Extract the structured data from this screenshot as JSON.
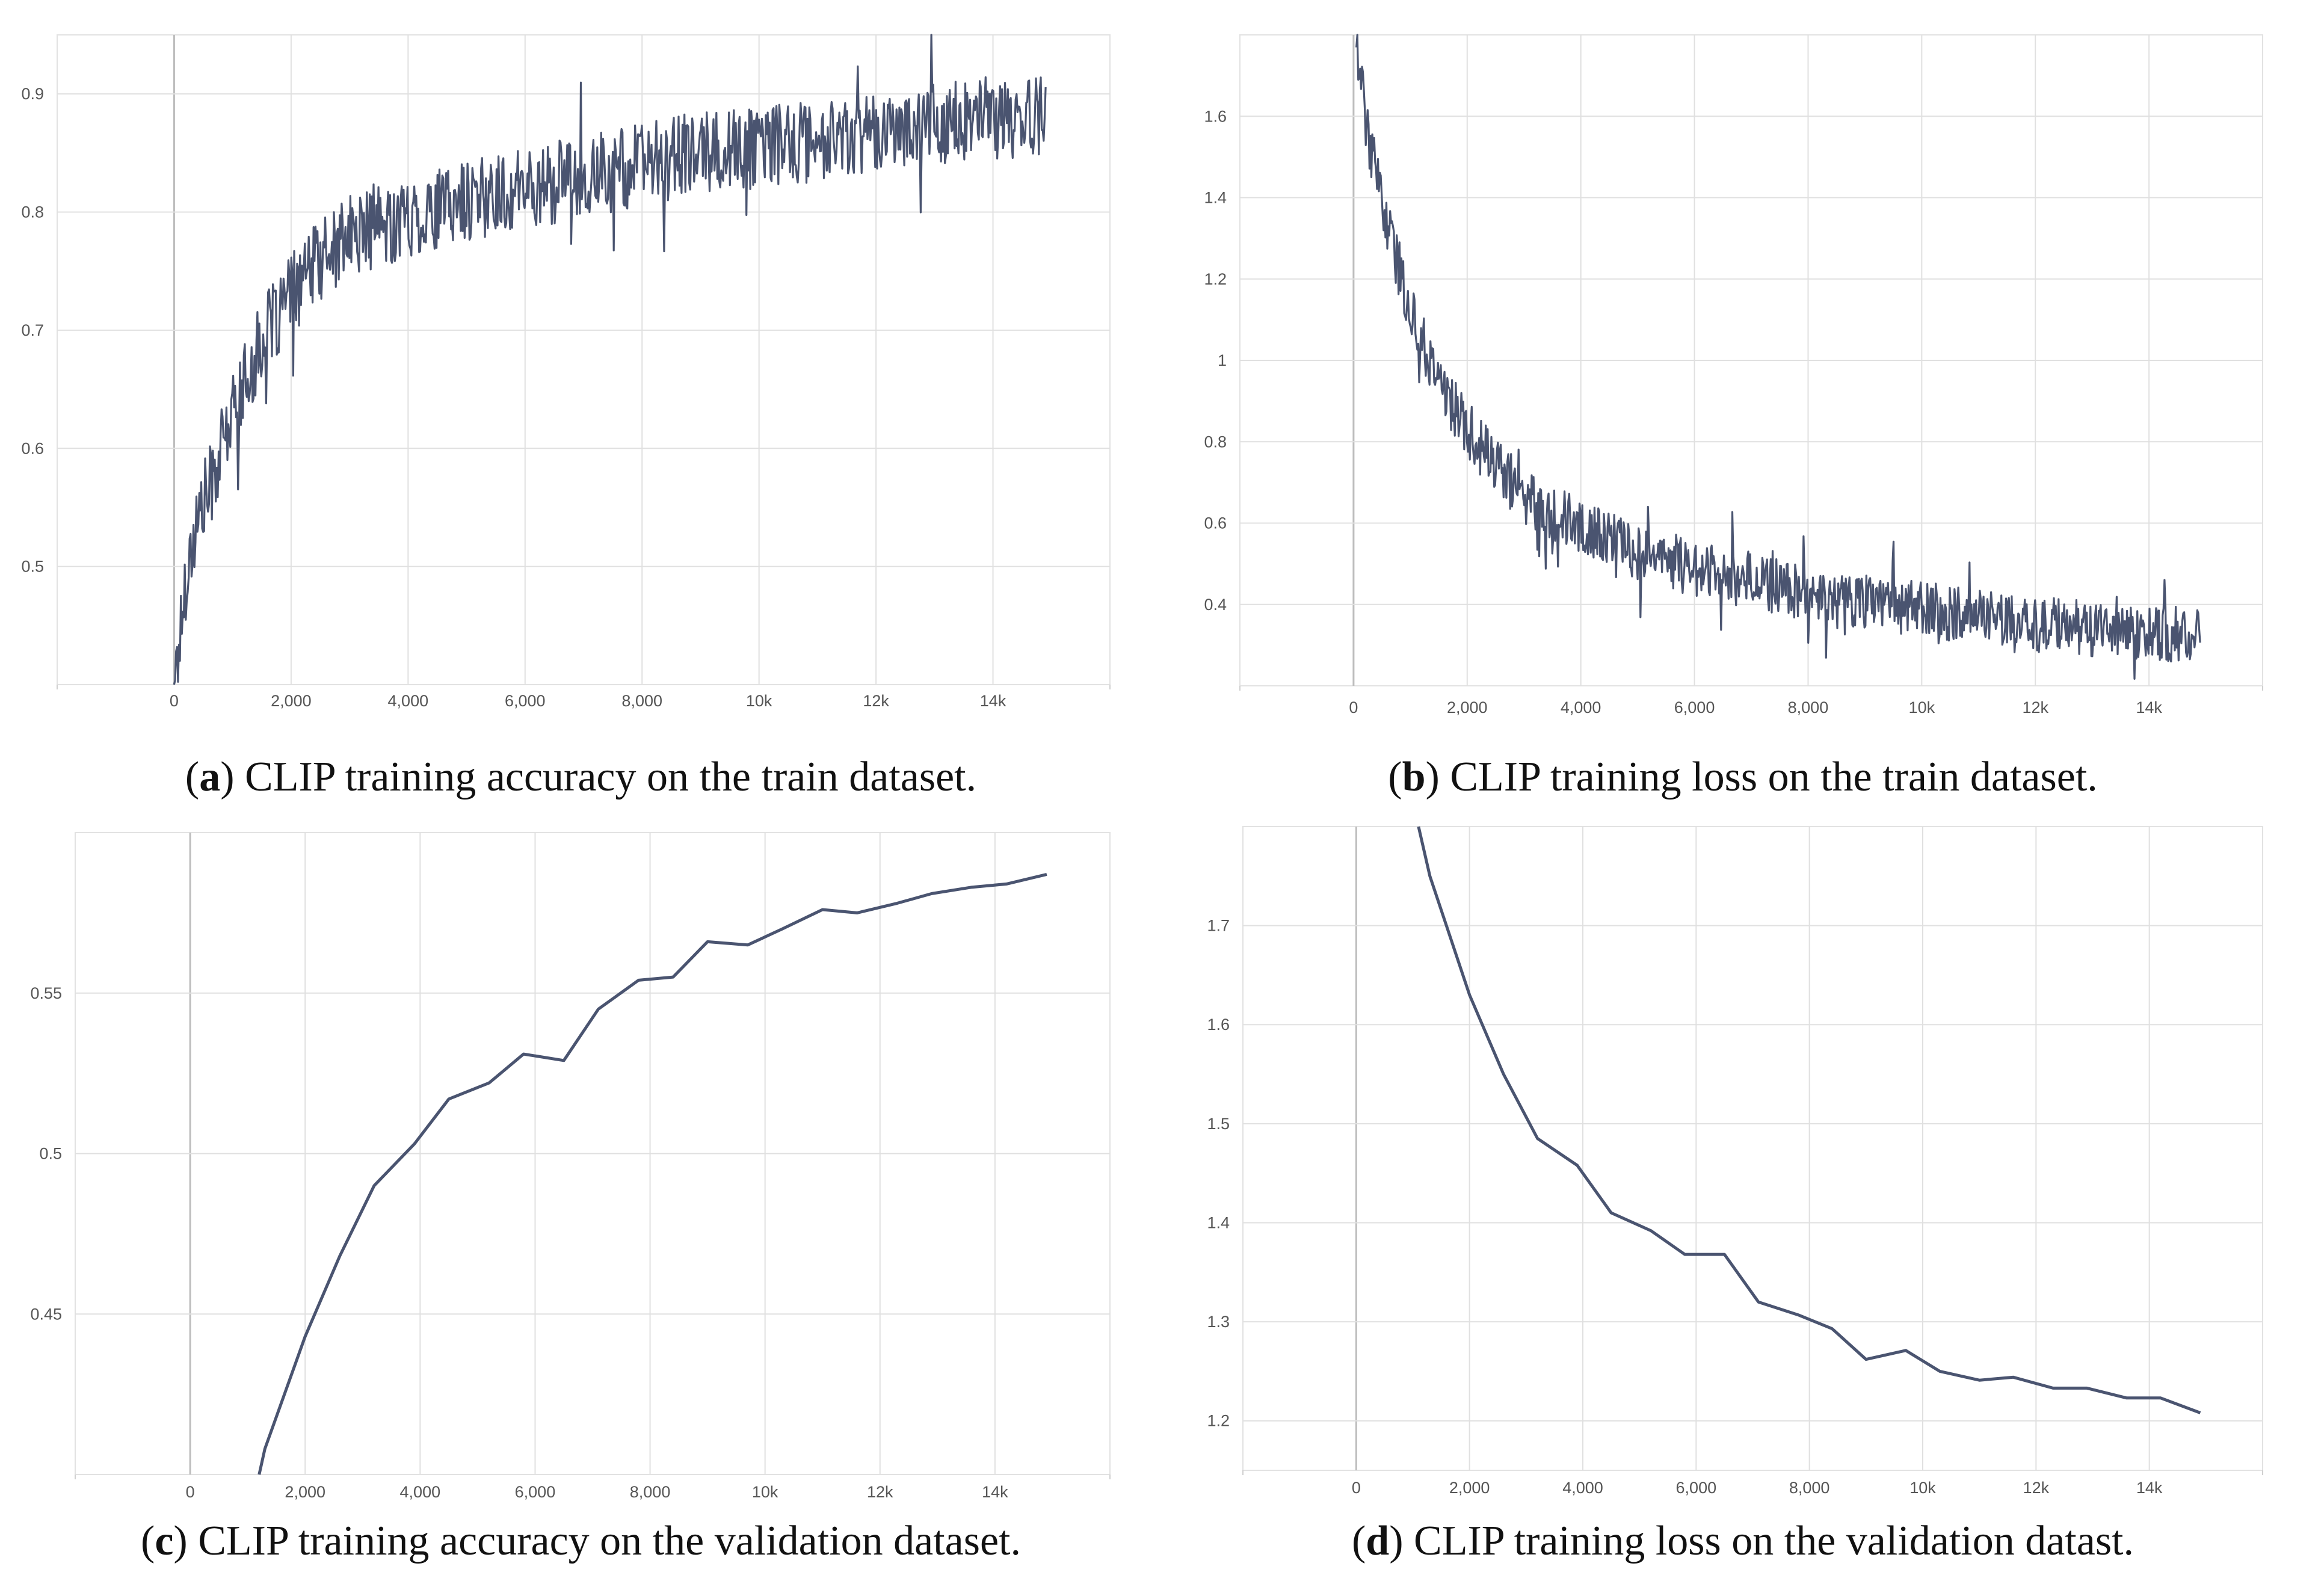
{
  "figure": {
    "line_color": "#4a5470",
    "panels": [
      {
        "id": "a",
        "caption_letter": "a",
        "caption_open": "(",
        "caption_close": ")",
        "caption_text": " CLIP training accuracy on the train dataset."
      },
      {
        "id": "b",
        "caption_letter": "b",
        "caption_open": "(",
        "caption_close": ")",
        "caption_text": " CLIP training loss on the train dataset."
      },
      {
        "id": "c",
        "caption_letter": "c",
        "caption_open": "(",
        "caption_close": ")",
        "caption_text": " CLIP training accuracy on the validation dataset."
      },
      {
        "id": "d",
        "caption_letter": "d",
        "caption_open": "(",
        "caption_close": ")",
        "caption_text": " CLIP training loss on the validation datast."
      }
    ]
  },
  "chart_data": [
    {
      "panel": "a",
      "type": "line",
      "title": "",
      "xlabel": "",
      "ylabel": "",
      "xlim": [
        -2000,
        16000
      ],
      "ylim": [
        0.4,
        0.95
      ],
      "grid": true,
      "x_ticks": [
        0,
        2000,
        4000,
        6000,
        8000,
        10000,
        12000,
        14000
      ],
      "x_tick_labels": [
        "0",
        "2,000",
        "4,000",
        "6,000",
        "8,000",
        "10k",
        "12k",
        "14k"
      ],
      "y_ticks": [
        0.5,
        0.6,
        0.7,
        0.8,
        0.9
      ],
      "y_tick_labels": [
        "0.5",
        "0.6",
        "0.7",
        "0.8",
        "0.9"
      ],
      "noisy": true,
      "noise_amplitude": 0.035,
      "series": [
        {
          "name": "train accuracy",
          "x": [
            0,
            100,
            200,
            400,
            700,
            1000,
            1500,
            2000,
            2500,
            3000,
            4000,
            5000,
            6000,
            7000,
            8000,
            9000,
            10000,
            11000,
            12000,
            13000,
            14000,
            14900
          ],
          "y": [
            0.4,
            0.44,
            0.49,
            0.54,
            0.58,
            0.63,
            0.69,
            0.73,
            0.76,
            0.78,
            0.795,
            0.81,
            0.82,
            0.83,
            0.84,
            0.85,
            0.855,
            0.86,
            0.87,
            0.875,
            0.88,
            0.88
          ]
        }
      ]
    },
    {
      "panel": "b",
      "type": "line",
      "title": "",
      "xlabel": "",
      "ylabel": "",
      "xlim": [
        -2000,
        16000
      ],
      "ylim": [
        0.2,
        1.8
      ],
      "grid": true,
      "x_ticks": [
        0,
        2000,
        4000,
        6000,
        8000,
        10000,
        12000,
        14000
      ],
      "x_tick_labels": [
        "0",
        "2,000",
        "4,000",
        "6,000",
        "8,000",
        "10k",
        "12k",
        "14k"
      ],
      "y_ticks": [
        0.4,
        0.6,
        0.8,
        1.0,
        1.2,
        1.4,
        1.6
      ],
      "y_tick_labels": [
        "0.4",
        "0.6",
        "0.8",
        "1",
        "1.2",
        "1.4",
        "1.6"
      ],
      "noisy": true,
      "noise_amplitude": 0.07,
      "series": [
        {
          "name": "train loss",
          "x": [
            50,
            200,
            400,
            700,
            1000,
            1500,
            2000,
            2500,
            3000,
            4000,
            5000,
            6000,
            7000,
            8000,
            9000,
            10000,
            11000,
            12000,
            13000,
            14000,
            14900
          ],
          "y": [
            1.8,
            1.6,
            1.45,
            1.28,
            1.12,
            0.95,
            0.83,
            0.74,
            0.67,
            0.59,
            0.53,
            0.49,
            0.46,
            0.43,
            0.41,
            0.39,
            0.37,
            0.35,
            0.34,
            0.33,
            0.32
          ]
        }
      ]
    },
    {
      "panel": "c",
      "type": "line",
      "title": "",
      "xlabel": "",
      "ylabel": "",
      "xlim": [
        -2000,
        16000
      ],
      "ylim": [
        0.4,
        0.6
      ],
      "grid": true,
      "x_ticks": [
        0,
        2000,
        4000,
        6000,
        8000,
        10000,
        12000,
        14000
      ],
      "x_tick_labels": [
        "0",
        "2,000",
        "4,000",
        "6,000",
        "8,000",
        "10k",
        "12k",
        "14k"
      ],
      "y_ticks": [
        0.45,
        0.5,
        0.55
      ],
      "y_tick_labels": [
        "0.45",
        "0.5",
        "0.55"
      ],
      "noisy": false,
      "series": [
        {
          "name": "validation accuracy",
          "x": [
            1200,
            1300,
            2000,
            2600,
            3200,
            3900,
            4500,
            5200,
            5800,
            6500,
            7100,
            7800,
            8400,
            9000,
            9700,
            10300,
            11000,
            11600,
            12300,
            12900,
            13600,
            14200,
            14900
          ],
          "y": [
            0.4,
            0.408,
            0.443,
            0.468,
            0.49,
            0.503,
            0.517,
            0.522,
            0.531,
            0.529,
            0.545,
            0.554,
            0.555,
            0.566,
            0.565,
            0.57,
            0.576,
            0.575,
            0.578,
            0.581,
            0.583,
            0.584,
            0.587
          ]
        }
      ]
    },
    {
      "panel": "d",
      "type": "line",
      "title": "",
      "xlabel": "",
      "ylabel": "",
      "xlim": [
        -2000,
        16000
      ],
      "ylim": [
        1.15,
        1.8
      ],
      "grid": true,
      "x_ticks": [
        0,
        2000,
        4000,
        6000,
        8000,
        10000,
        12000,
        14000
      ],
      "x_tick_labels": [
        "0",
        "2,000",
        "4,000",
        "6,000",
        "8,000",
        "10k",
        "12k",
        "14k"
      ],
      "y_ticks": [
        1.2,
        1.3,
        1.4,
        1.5,
        1.6,
        1.7
      ],
      "y_tick_labels": [
        "1.2",
        "1.3",
        "1.4",
        "1.5",
        "1.6",
        "1.7"
      ],
      "noisy": false,
      "series": [
        {
          "name": "validation loss",
          "x": [
            1100,
            1300,
            2000,
            2600,
            3200,
            3900,
            4500,
            5200,
            5800,
            6500,
            7100,
            7800,
            8400,
            9000,
            9700,
            10300,
            11000,
            11600,
            12300,
            12900,
            13600,
            14200,
            14900
          ],
          "y": [
            1.8,
            1.75,
            1.63,
            1.55,
            1.485,
            1.458,
            1.41,
            1.392,
            1.368,
            1.368,
            1.32,
            1.307,
            1.293,
            1.262,
            1.271,
            1.25,
            1.241,
            1.244,
            1.233,
            1.233,
            1.223,
            1.223,
            1.208
          ]
        }
      ]
    }
  ]
}
